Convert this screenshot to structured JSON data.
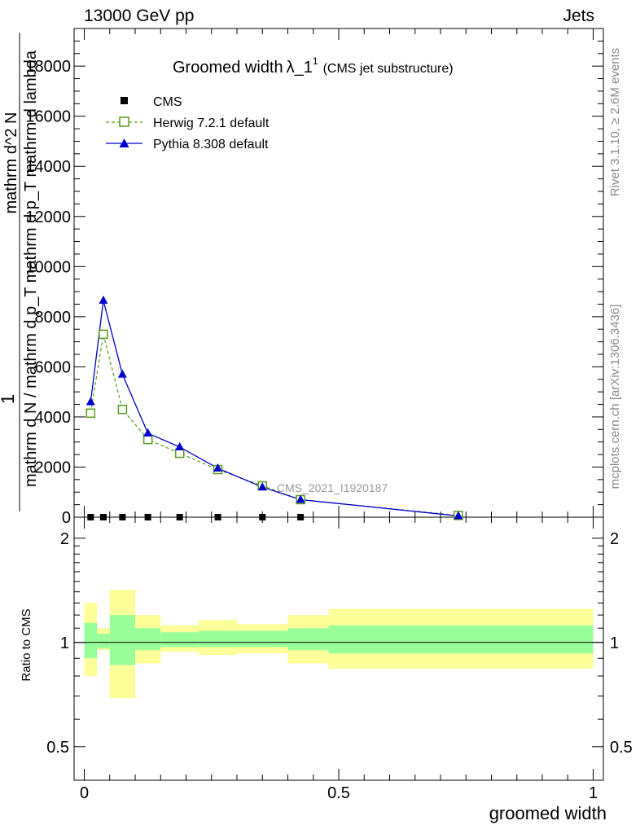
{
  "header": {
    "left_label": "13000 GeV pp",
    "right_label": "Jets"
  },
  "side": {
    "rivet_label": "Rivet 3.1.10, ≥ 2.6M events",
    "mcplots_label": "mcplots.cern.ch [arXiv:1306.3436]"
  },
  "watermark": "CMS_2021_I1920187",
  "chart_data": [
    {
      "type": "line",
      "title_main": "Groomed width",
      "title_symbol": "λ_1",
      "title_sup": "1",
      "title_suffix": "(CMS jet substructure)",
      "ylabel_numer": "1",
      "ylabel_denom": "mathrm d N / mathrm d p_T mathrm d p_T mathrm d lambda",
      "ylabel_top": "mathrm d^2 N",
      "ylim": [
        0,
        19500
      ],
      "yticks": [
        0,
        2000,
        4000,
        6000,
        8000,
        10000,
        12000,
        14000,
        16000,
        18000
      ],
      "ytick_labels": [
        "0",
        "2000",
        "4000",
        "6000",
        "8000",
        "10000",
        "12000",
        "14000",
        "16000",
        "18000"
      ],
      "xlim": [
        -0.02,
        1.02
      ],
      "legend_position": "top-left",
      "series": [
        {
          "name": "CMS",
          "style": "marker-square",
          "color": "#000000",
          "x": [
            0.0125,
            0.0375,
            0.075,
            0.125,
            0.1875,
            0.2625,
            0.35,
            0.425
          ],
          "y": [
            0,
            0,
            0,
            0,
            0,
            0,
            0,
            0
          ]
        },
        {
          "name": "Herwig 7.2.1 default",
          "style": "dashed-open-square",
          "color": "#5b9c1e",
          "x": [
            0.0125,
            0.0375,
            0.075,
            0.125,
            0.1875,
            0.2625,
            0.35,
            0.425,
            0.735
          ],
          "y": [
            4150,
            7300,
            4300,
            3100,
            2550,
            1900,
            1250,
            700,
            70
          ]
        },
        {
          "name": "Pythia 8.308 default",
          "style": "solid-filled-triangle",
          "color": "#0000cc",
          "x": [
            0.0125,
            0.0375,
            0.075,
            0.125,
            0.1875,
            0.2625,
            0.35,
            0.425,
            0.735
          ],
          "y": [
            4600,
            8650,
            5700,
            3350,
            2800,
            1950,
            1200,
            700,
            50
          ]
        }
      ]
    },
    {
      "type": "area",
      "ylabel": "Ratio to CMS",
      "ylim": [
        0.4,
        2.3
      ],
      "yticks": [
        0.5,
        1,
        2
      ],
      "ytick_labels": [
        "0.5",
        "1",
        "2"
      ],
      "xlim": [
        -0.02,
        1.02
      ],
      "xticks": [
        0,
        0.5,
        1
      ],
      "xtick_labels": [
        "0",
        "0.5",
        "1"
      ],
      "xlabel": "groomed width",
      "band_colors": {
        "inner": "#99ff99",
        "outer": "#ffff99"
      },
      "bins": [
        {
          "lo": 0.0,
          "hi": 0.025,
          "inner": [
            0.9,
            1.14
          ],
          "outer": [
            0.8,
            1.3
          ]
        },
        {
          "lo": 0.025,
          "hi": 0.05,
          "inner": [
            0.96,
            1.06
          ],
          "outer": [
            0.95,
            1.1
          ]
        },
        {
          "lo": 0.05,
          "hi": 0.1,
          "inner": [
            0.86,
            1.2
          ],
          "outer": [
            0.69,
            1.42
          ]
        },
        {
          "lo": 0.1,
          "hi": 0.15,
          "inner": [
            0.95,
            1.1
          ],
          "outer": [
            0.87,
            1.2
          ]
        },
        {
          "lo": 0.15,
          "hi": 0.225,
          "inner": [
            0.97,
            1.07
          ],
          "outer": [
            0.94,
            1.12
          ]
        },
        {
          "lo": 0.225,
          "hi": 0.3,
          "inner": [
            0.97,
            1.08
          ],
          "outer": [
            0.92,
            1.16
          ]
        },
        {
          "lo": 0.3,
          "hi": 0.4,
          "inner": [
            0.97,
            1.08
          ],
          "outer": [
            0.93,
            1.13
          ]
        },
        {
          "lo": 0.4,
          "hi": 0.48,
          "inner": [
            0.95,
            1.1
          ],
          "outer": [
            0.87,
            1.2
          ]
        },
        {
          "lo": 0.48,
          "hi": 1.0,
          "inner": [
            0.93,
            1.12
          ],
          "outer": [
            0.84,
            1.25
          ]
        }
      ]
    }
  ]
}
